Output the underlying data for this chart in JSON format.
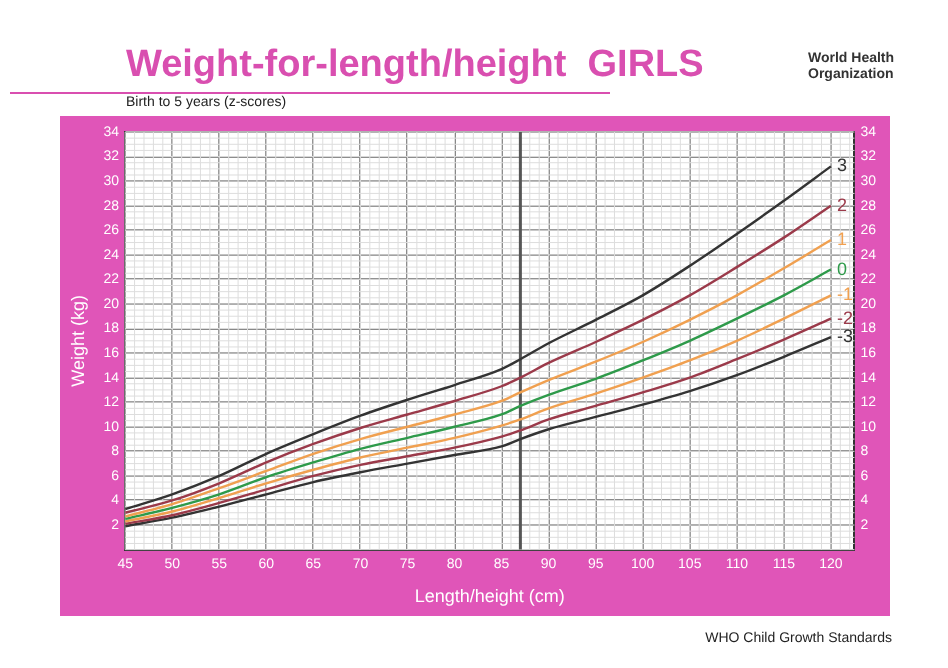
{
  "chart_data": {
    "type": "line",
    "title": "Weight-for-length/height  GIRLS",
    "subtitle": "Birth to 5 years (z-scores)",
    "xlabel": "Length/height (cm)",
    "ylabel": "Weight (kg)",
    "annotations": [
      "World Health Organization",
      "WHO Child Growth Standards"
    ],
    "x": [
      45,
      50,
      55,
      60,
      65,
      70,
      75,
      80,
      85,
      87,
      90,
      95,
      100,
      105,
      110,
      115,
      120
    ],
    "series": [
      {
        "name": "3",
        "color": "#333333",
        "values": [
          3.3,
          4.5,
          6.0,
          7.8,
          9.4,
          10.9,
          12.2,
          13.4,
          14.7,
          15.5,
          16.8,
          18.7,
          20.7,
          23.1,
          25.7,
          28.4,
          31.2
        ]
      },
      {
        "name": "2",
        "color": "#9b3a4a",
        "values": [
          3.0,
          4.0,
          5.4,
          7.1,
          8.6,
          9.9,
          11.0,
          12.1,
          13.3,
          14.0,
          15.2,
          16.9,
          18.7,
          20.7,
          23.0,
          25.4,
          28.0
        ]
      },
      {
        "name": "1",
        "color": "#f0a050",
        "values": [
          2.7,
          3.7,
          5.0,
          6.4,
          7.8,
          9.0,
          10.0,
          11.0,
          12.1,
          12.8,
          13.8,
          15.3,
          16.9,
          18.7,
          20.7,
          22.9,
          25.2
        ]
      },
      {
        "name": "0",
        "color": "#2e9a4a",
        "values": [
          2.5,
          3.4,
          4.5,
          5.9,
          7.1,
          8.2,
          9.1,
          10.0,
          11.0,
          11.7,
          12.6,
          13.9,
          15.4,
          17.0,
          18.8,
          20.7,
          22.8
        ]
      },
      {
        "name": "-1",
        "color": "#f0a050",
        "values": [
          2.3,
          3.1,
          4.2,
          5.4,
          6.5,
          7.5,
          8.3,
          9.1,
          10.1,
          10.6,
          11.5,
          12.7,
          14.0,
          15.4,
          17.0,
          18.8,
          20.7
        ]
      },
      {
        "name": "-2",
        "color": "#9b3a4a",
        "values": [
          2.1,
          2.8,
          3.8,
          4.9,
          6.0,
          6.9,
          7.6,
          8.3,
          9.2,
          9.7,
          10.6,
          11.7,
          12.8,
          14.0,
          15.5,
          17.1,
          18.8
        ]
      },
      {
        "name": "-3",
        "color": "#333333",
        "values": [
          1.9,
          2.6,
          3.5,
          4.5,
          5.5,
          6.3,
          7.0,
          7.7,
          8.4,
          9.0,
          9.8,
          10.8,
          11.8,
          12.9,
          14.2,
          15.7,
          17.3
        ]
      }
    ],
    "xlim": [
      45,
      122.5
    ],
    "xticks": [
      45,
      50,
      55,
      60,
      65,
      70,
      75,
      80,
      85,
      90,
      95,
      100,
      105,
      110,
      115,
      120
    ],
    "ylim": [
      0,
      34
    ],
    "yticks": [
      2,
      4,
      6,
      8,
      10,
      12,
      14,
      16,
      18,
      20,
      22,
      24,
      26,
      28,
      30,
      32,
      34
    ],
    "y2lim": [
      0,
      34
    ],
    "y2ticks": [
      2,
      4,
      6,
      8,
      10,
      12,
      14,
      16,
      18,
      20,
      22,
      24,
      26,
      28,
      30,
      32,
      34
    ],
    "ref_lines": [
      {
        "axis": "x",
        "value": 87,
        "color": "#555555"
      }
    ],
    "grid": true,
    "legend": false,
    "marker": "none",
    "line_style": "solid"
  }
}
